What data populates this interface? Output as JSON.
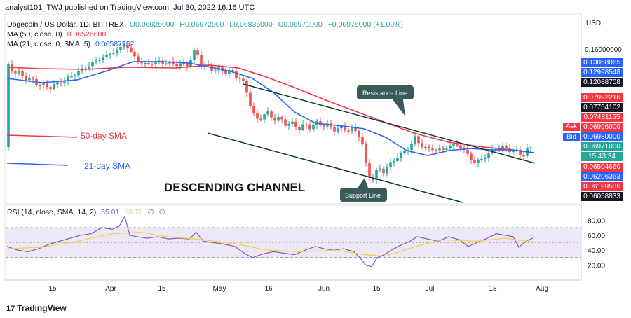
{
  "header": {
    "text": "analyst101_TWJ published on TradingView.com, Jul 30, 2022 16:16 UTC",
    "symbol": "Dogecoin / US Dollar, 1D, BITTREX",
    "ohlc": {
      "open": "O0.06925000",
      "high": "H0.06972000",
      "low": "L0.06835000",
      "close": "C0.06971000",
      "change": "+0.00075000 (+1.09%)"
    },
    "ma50_label": "MA (50, close, 0)",
    "ma50_value": "0.06526600",
    "ma21_label": "MA (21, close, 0, SMA, 5)",
    "ma21_value": "0.06587952"
  },
  "rsi_legend": {
    "label": "RSI (14, close, SMA, 14, 2)",
    "value1": "55.01",
    "value2": "50.78",
    "empty1": "∅",
    "empty2": "∅"
  },
  "annotations": {
    "sma50": "50-day SMA",
    "sma21": "21-day SMA",
    "channel": "DESCENDING CHANNEL",
    "resistance": "Resistance Line",
    "support": "Support Line"
  },
  "price_axis": {
    "currency": "USD",
    "ticks": [
      "0.16000000"
    ],
    "tags": [
      {
        "text": "0.13058065",
        "color": "#2962ff"
      },
      {
        "text": "0.12998548",
        "color": "#2962ff"
      },
      {
        "text": "0.12088708",
        "color": "#131722"
      },
      {
        "text": "0.07992216",
        "color": "#f23645"
      },
      {
        "text": "0.07754102",
        "color": "#131722"
      },
      {
        "text": "0.07481155",
        "color": "#f23645"
      },
      {
        "text": "0.06996000",
        "color": "#f23645"
      },
      {
        "text": "0.06980000",
        "color": "#2962ff"
      },
      {
        "text": "0.06971000",
        "color": "#26a69a"
      },
      {
        "text": "15:43:34",
        "color": "#26a69a"
      },
      {
        "text": "0.06504660",
        "color": "#f23645"
      },
      {
        "text": "0.06206363",
        "color": "#2962ff"
      },
      {
        "text": "0.06199536",
        "color": "#f23645"
      },
      {
        "text": "0.06058833",
        "color": "#131722"
      }
    ],
    "ask": "Ask",
    "bid": "Bid"
  },
  "rsi_axis": [
    "80.00",
    "60.00",
    "40.00",
    "20.00"
  ],
  "time_axis": [
    "15",
    "Apr",
    "15",
    "May",
    "16",
    "Jun",
    "15",
    "Jul",
    "18",
    "Aug"
  ],
  "footer": {
    "brand": "TradingView",
    "mark": "17"
  },
  "colors": {
    "up": "#26a69a",
    "down": "#ef5350",
    "ma50": "#f23645",
    "ma21": "#2962ff",
    "rsi": "#7e57c2",
    "rsi_ma": "#f7d046",
    "band": "#ede7f6"
  },
  "chart_data": {
    "type": "candlestick",
    "series": [
      {
        "name": "MA (50, close, 0)",
        "last": 0.065266
      },
      {
        "name": "MA (21, close, 0, SMA, 5)",
        "last": 0.06587952
      },
      {
        "name": "RSI (14, close, SMA, 14, 2)",
        "last": 55.01,
        "ma_last": 50.78,
        "ylim": [
          0,
          100
        ],
        "bands": [
          30,
          70
        ]
      }
    ],
    "x_ticks": [
      "15",
      "Apr",
      "15",
      "May",
      "16",
      "Jun",
      "15",
      "Jul",
      "18",
      "Aug"
    ],
    "last_close": 0.06971
  }
}
